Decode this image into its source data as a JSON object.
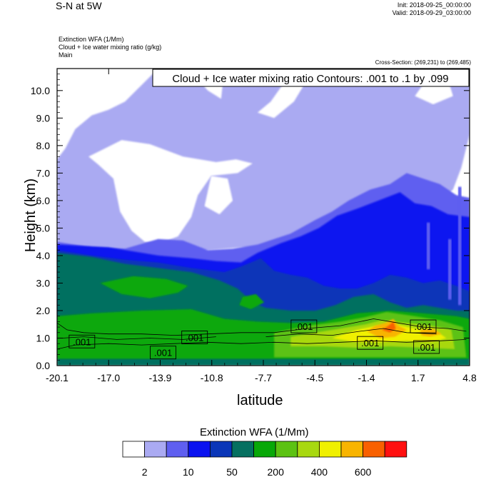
{
  "header": {
    "title": "S-N at 5W",
    "init": "Init: 2018-09-25_00:00:00",
    "valid": "Valid: 2018-09-29_03:00:00"
  },
  "subheader": {
    "line1": "Extinction WFA   (1/Mm)",
    "line2": "Cloud + Ice water mixing ratio   (g/kg)",
    "line3": "Main",
    "cross_section": "Cross-Section: (269,231) to (269,485)"
  },
  "chart_data": {
    "type": "heatmap",
    "title": "S-N at 5W",
    "fill_variable": "Extinction WFA  (1/Mm)",
    "contour_variable": "Cloud + Ice water mixing ratio",
    "contour_label": "Cloud + Ice water mixing ratio Contours: .001 to .1 by .099",
    "xlabel": "latitude",
    "ylabel": "Height (km)",
    "xlim": [
      -20.1,
      4.8
    ],
    "ylim": [
      0.0,
      10.8
    ],
    "x_ticks": [
      "-20.1",
      "-17.0",
      "-13.9",
      "-10.8",
      "-7.7",
      "-4.5",
      "-1.4",
      "1.7",
      "4.8"
    ],
    "y_ticks": [
      "0.0",
      "1.0",
      "2.0",
      "3.0",
      "4.0",
      "5.0",
      "6.0",
      "7.0",
      "8.0",
      "9.0",
      "10.0"
    ],
    "contour_labels": [
      {
        "text": ".001",
        "lat": -18.6,
        "height": 0.85
      },
      {
        "text": ".001",
        "lat": -13.7,
        "height": 0.45
      },
      {
        "text": ".001",
        "lat": -11.8,
        "height": 1.0
      },
      {
        "text": ".001",
        "lat": -5.2,
        "height": 1.4
      },
      {
        "text": ".001",
        "lat": -1.2,
        "height": 0.8
      },
      {
        "text": ".001",
        "lat": 2.0,
        "height": 1.4
      },
      {
        "text": ".001",
        "lat": 2.2,
        "height": 0.65
      }
    ],
    "regions": {
      "upper_cloud_2_10": "approx. 6.5–10.8 km, thinning toward north",
      "white_below_2": "clear core approx. 4.6–8.2 km, -16.5 to -11",
      "mid_band_10_50": "approx. 3.5–6 km",
      "boundary_layer_50_200": "approx. 0–4.3 km",
      "low_cloud_peak_400_600": "approx. 0.7–1.8 km between -3 and 3"
    }
  },
  "colorbar": {
    "title": "Extinction WFA  (1/Mm)",
    "colors": [
      "#ffffff",
      "#aaaaf2",
      "#5f5ff0",
      "#0a12f0",
      "#0a36b8",
      "#067060",
      "#08a808",
      "#5cc212",
      "#a8d810",
      "#f0f000",
      "#f8b400",
      "#f86000",
      "#ff1010"
    ],
    "tick_labels": [
      "2",
      "10",
      "50",
      "200",
      "400",
      "600"
    ]
  }
}
